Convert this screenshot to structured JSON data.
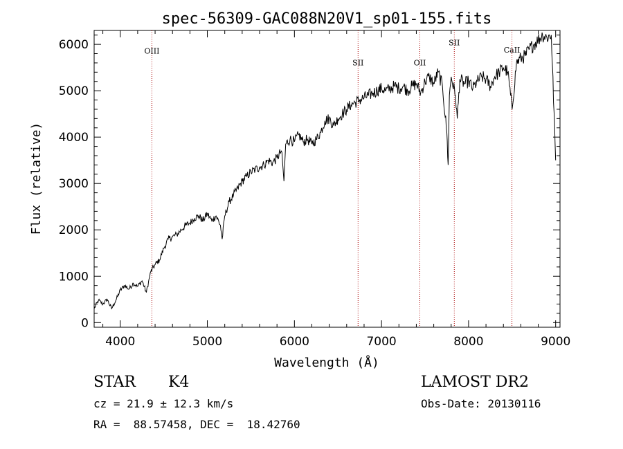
{
  "chart_data": {
    "type": "line",
    "title": "spec-56309-GAC088N20V1_sp01-155.fits",
    "xlabel": "Wavelength (Å)",
    "ylabel": "Flux (relative)",
    "xlim": [
      3700,
      9050
    ],
    "ylim": [
      -100,
      6300
    ],
    "x_ticks": [
      "4000",
      "5000",
      "6000",
      "7000",
      "8000",
      "9000"
    ],
    "x_tick_values": [
      4000,
      5000,
      6000,
      7000,
      8000,
      9000
    ],
    "y_ticks": [
      "0",
      "1000",
      "2000",
      "3000",
      "4000",
      "5000",
      "6000"
    ],
    "y_tick_values": [
      0,
      1000,
      2000,
      3000,
      4000,
      5000,
      6000
    ],
    "line_color": "#000000",
    "marker_color": "#aa0000",
    "lines": [
      {
        "name": "OIII",
        "wavelength": 4363,
        "label_flux": 5800
      },
      {
        "name": "SII",
        "wavelength": 6731,
        "label_flux": 5550
      },
      {
        "name": "OII",
        "wavelength": 7440,
        "label_flux": 5550
      },
      {
        "name": "SII",
        "wavelength": 7836,
        "label_flux": 5980
      },
      {
        "name": "CaII",
        "wavelength": 8498,
        "label_flux": 5820
      }
    ],
    "series": [
      {
        "x": [
          3700,
          3750,
          3800,
          3850,
          3900,
          3950,
          4000,
          4050,
          4100,
          4150,
          4200,
          4250,
          4300,
          4350,
          4400,
          4450,
          4500,
          4550,
          4600,
          4650,
          4700,
          4750,
          4800,
          4850,
          4900,
          4950,
          5000,
          5050,
          5100,
          5150,
          5170,
          5200,
          5250,
          5300,
          5350,
          5400,
          5450,
          5500,
          5550,
          5600,
          5650,
          5700,
          5750,
          5800,
          5850,
          5870,
          5880,
          5900,
          5950,
          6000,
          6050,
          6100,
          6150,
          6200,
          6250,
          6300,
          6350,
          6400,
          6450,
          6500,
          6550,
          6600,
          6650,
          6700,
          6750,
          6800,
          6850,
          6900,
          6950,
          7000,
          7050,
          7100,
          7150,
          7200,
          7250,
          7300,
          7350,
          7400,
          7450,
          7500,
          7550,
          7600,
          7650,
          7700,
          7750,
          7765,
          7780,
          7800,
          7850,
          7870,
          7900,
          7950,
          8000,
          8050,
          8100,
          8150,
          8200,
          8250,
          8300,
          8350,
          8400,
          8450,
          8500,
          8550,
          8600,
          8650,
          8700,
          8750,
          8800,
          8850,
          8900,
          8950,
          9000
        ],
        "y": [
          300,
          480,
          400,
          500,
          300,
          480,
          700,
          800,
          720,
          850,
          780,
          900,
          650,
          1100,
          1250,
          1350,
          1600,
          1800,
          1850,
          1900,
          2000,
          2100,
          2150,
          2250,
          2300,
          2200,
          2350,
          2200,
          2300,
          2100,
          1800,
          2300,
          2600,
          2750,
          2900,
          3050,
          3150,
          3250,
          3300,
          3350,
          3400,
          3500,
          3450,
          3550,
          3700,
          3300,
          3050,
          3850,
          3950,
          3900,
          4050,
          3900,
          3950,
          3850,
          3950,
          4100,
          4350,
          4400,
          4250,
          4400,
          4500,
          4600,
          4700,
          4750,
          4800,
          4850,
          4900,
          4950,
          5000,
          5050,
          5000,
          5050,
          5100,
          5050,
          5100,
          5000,
          5100,
          5150,
          4950,
          5200,
          5300,
          5150,
          5400,
          5100,
          4100,
          3400,
          4900,
          5300,
          4900,
          4400,
          5250,
          5150,
          5200,
          5050,
          5200,
          5300,
          5250,
          5100,
          5300,
          5400,
          5500,
          5400,
          4600,
          5600,
          5700,
          5750,
          5900,
          6000,
          6100,
          6200,
          6150,
          6200,
          3500
        ]
      }
    ]
  },
  "footer": {
    "object_class": "STAR",
    "subclass": "K4",
    "survey": "LAMOST DR2",
    "velocity": "cz = 21.9 ± 12.3 km/s",
    "obs_date": "Obs-Date: 20130116",
    "coords": "RA =  88.57458, DEC =  18.42760"
  }
}
